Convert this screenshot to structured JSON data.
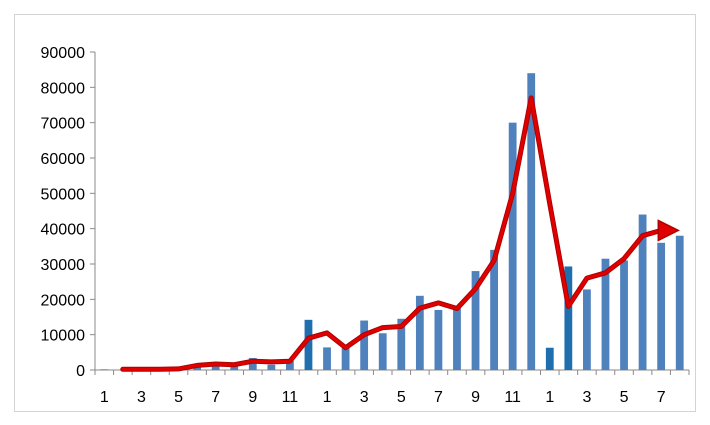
{
  "chart_data": {
    "type": "bar",
    "title": "",
    "xlabel": "",
    "ylabel": "",
    "ylim": [
      0,
      90000
    ],
    "yticks": [
      0,
      10000,
      20000,
      30000,
      40000,
      50000,
      60000,
      70000,
      80000,
      90000
    ],
    "ytick_labels": [
      "0",
      "10000",
      "20000",
      "30000",
      "40000",
      "50000",
      "60000",
      "70000",
      "80000",
      "90000"
    ],
    "categories": [
      "1",
      "2",
      "3",
      "4",
      "5",
      "6",
      "7",
      "8",
      "9",
      "10",
      "11",
      "12",
      "1",
      "2",
      "3",
      "4",
      "5",
      "6",
      "7",
      "8",
      "9",
      "10",
      "11",
      "12",
      "1",
      "2",
      "3",
      "4",
      "5",
      "6",
      "7",
      "8"
    ],
    "xtick_labels_shown": [
      "1",
      "3",
      "5",
      "7",
      "9",
      "11",
      "1",
      "3",
      "5",
      "7",
      "9",
      "11",
      "1",
      "3",
      "5",
      "7"
    ],
    "series": [
      {
        "kind": "bar",
        "values": [
          200,
          100,
          200,
          100,
          300,
          800,
          1200,
          1100,
          3400,
          1500,
          2600,
          14200,
          6400,
          6300,
          14000,
          10400,
          14500,
          21000,
          17000,
          18000,
          28000,
          34000,
          70000,
          84000,
          6300,
          29300,
          22800,
          31500,
          31000,
          44000,
          36000,
          38000
        ],
        "color": "#4f81bd",
        "highlight_color": "#1f6faf"
      },
      {
        "kind": "line",
        "values": [
          null,
          200,
          200,
          200,
          300,
          1300,
          1700,
          1500,
          2500,
          2300,
          2500,
          9000,
          10500,
          6300,
          10000,
          12000,
          12300,
          17500,
          19000,
          17400,
          23000,
          31000,
          50000,
          77000,
          47000,
          18000,
          26000,
          27500,
          31500,
          38000,
          39500,
          null
        ],
        "color": "#e00000",
        "arrow_end": [
          30.6,
          39500
        ]
      }
    ],
    "grid": false,
    "legend": "none"
  }
}
